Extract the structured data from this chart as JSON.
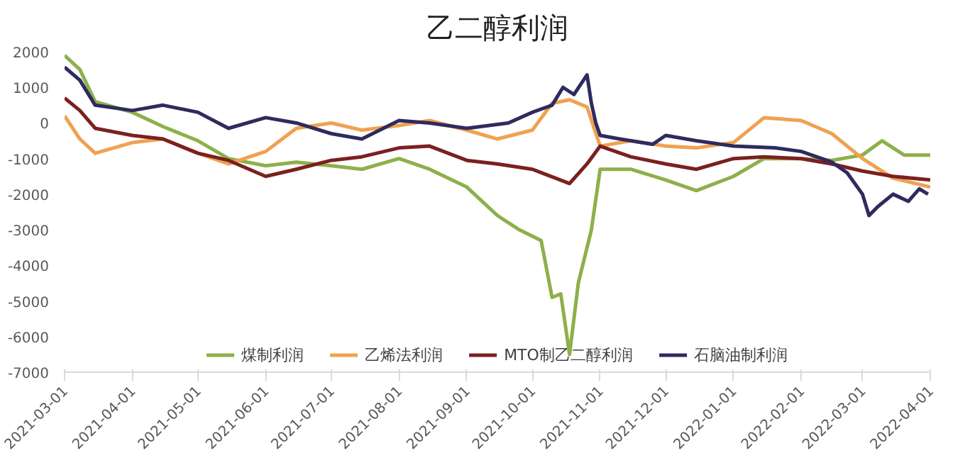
{
  "chart_data": {
    "type": "line",
    "title": "乙二醇利润",
    "xlim": [
      "2021-03-01",
      "2022-04-01"
    ],
    "xticks": [
      "2021-03-01",
      "2021-04-01",
      "2021-05-01",
      "2021-06-01",
      "2021-07-01",
      "2021-08-01",
      "2021-09-01",
      "2021-10-01",
      "2021-11-01",
      "2021-12-01",
      "2022-01-01",
      "2022-02-01",
      "2022-03-01",
      "2022-04-01"
    ],
    "ylim": [
      -7000,
      2000
    ],
    "yticks": [
      -7000,
      -6000,
      -5000,
      -4000,
      -3000,
      -2000,
      -1000,
      0,
      1000,
      2000
    ],
    "grid": false,
    "legend": "bottom",
    "series": [
      {
        "name": "煤制利润",
        "color": "#8db04a",
        "x": [
          "2021-03-01",
          "2021-03-08",
          "2021-03-15",
          "2021-04-01",
          "2021-04-15",
          "2021-05-01",
          "2021-05-15",
          "2021-06-01",
          "2021-06-15",
          "2021-07-01",
          "2021-07-15",
          "2021-08-01",
          "2021-08-15",
          "2021-09-01",
          "2021-09-15",
          "2021-09-25",
          "2021-10-05",
          "2021-10-10",
          "2021-10-14",
          "2021-10-18",
          "2021-10-22",
          "2021-10-28",
          "2021-11-01",
          "2021-11-15",
          "2021-12-01",
          "2021-12-15",
          "2022-01-01",
          "2022-01-15",
          "2022-02-01",
          "2022-02-15",
          "2022-03-01",
          "2022-03-10",
          "2022-03-20",
          "2022-04-01"
        ],
        "values": [
          1900,
          1500,
          600,
          300,
          -100,
          -500,
          -1000,
          -1200,
          -1100,
          -1200,
          -1300,
          -1000,
          -1300,
          -1800,
          -2600,
          -3000,
          -3300,
          -4900,
          -4800,
          -6500,
          -4500,
          -3000,
          -1300,
          -1300,
          -1600,
          -1900,
          -1500,
          -1000,
          -1000,
          -1050,
          -900,
          -500,
          -900,
          -900
        ]
      },
      {
        "name": "乙烯法利润",
        "color": "#f0a150",
        "x": [
          "2021-03-01",
          "2021-03-08",
          "2021-03-15",
          "2021-04-01",
          "2021-04-15",
          "2021-05-01",
          "2021-05-15",
          "2021-06-01",
          "2021-06-15",
          "2021-07-01",
          "2021-07-15",
          "2021-08-01",
          "2021-08-15",
          "2021-09-01",
          "2021-09-15",
          "2021-10-01",
          "2021-10-10",
          "2021-10-18",
          "2021-10-26",
          "2021-11-01",
          "2021-11-15",
          "2021-12-01",
          "2021-12-15",
          "2022-01-01",
          "2022-01-15",
          "2022-02-01",
          "2022-02-15",
          "2022-03-01",
          "2022-03-15",
          "2022-04-01"
        ],
        "values": [
          200,
          -450,
          -850,
          -550,
          -450,
          -850,
          -1150,
          -800,
          -150,
          0,
          -200,
          -70,
          70,
          -200,
          -450,
          -200,
          550,
          650,
          450,
          -650,
          -500,
          -650,
          -700,
          -550,
          150,
          70,
          -300,
          -1000,
          -1550,
          -1800
        ]
      },
      {
        "name": "MTO制乙二醇利润",
        "color": "#7b2020",
        "x": [
          "2021-03-01",
          "2021-03-08",
          "2021-03-15",
          "2021-04-01",
          "2021-04-15",
          "2021-05-01",
          "2021-05-15",
          "2021-06-01",
          "2021-06-15",
          "2021-07-01",
          "2021-07-15",
          "2021-08-01",
          "2021-08-15",
          "2021-09-01",
          "2021-09-15",
          "2021-10-01",
          "2021-10-18",
          "2021-10-26",
          "2021-11-01",
          "2021-11-15",
          "2021-12-01",
          "2021-12-15",
          "2022-01-01",
          "2022-01-15",
          "2022-02-01",
          "2022-02-15",
          "2022-03-01",
          "2022-03-15",
          "2022-04-01"
        ],
        "values": [
          700,
          350,
          -150,
          -350,
          -450,
          -850,
          -1050,
          -1500,
          -1300,
          -1050,
          -950,
          -700,
          -650,
          -1050,
          -1150,
          -1300,
          -1700,
          -1150,
          -650,
          -950,
          -1150,
          -1300,
          -1000,
          -950,
          -1000,
          -1150,
          -1350,
          -1500,
          -1600
        ]
      },
      {
        "name": "石脑油制利润",
        "color": "#2e2b5e",
        "x": [
          "2021-03-01",
          "2021-03-08",
          "2021-03-15",
          "2021-04-01",
          "2021-04-15",
          "2021-05-01",
          "2021-05-15",
          "2021-06-01",
          "2021-06-15",
          "2021-07-01",
          "2021-07-15",
          "2021-08-01",
          "2021-08-15",
          "2021-09-01",
          "2021-09-20",
          "2021-10-01",
          "2021-10-10",
          "2021-10-15",
          "2021-10-20",
          "2021-10-26",
          "2021-10-28",
          "2021-10-30",
          "2021-11-01",
          "2021-11-10",
          "2021-11-25",
          "2021-12-01",
          "2021-12-15",
          "2022-01-01",
          "2022-01-20",
          "2022-02-01",
          "2022-02-15",
          "2022-02-22",
          "2022-03-01",
          "2022-03-04",
          "2022-03-08",
          "2022-03-15",
          "2022-03-22",
          "2022-03-27",
          "2022-03-31"
        ],
        "values": [
          1570,
          1200,
          500,
          350,
          500,
          300,
          -150,
          150,
          0,
          -300,
          -450,
          70,
          0,
          -150,
          0,
          300,
          500,
          1000,
          800,
          1350,
          550,
          0,
          -350,
          -450,
          -600,
          -350,
          -500,
          -650,
          -700,
          -800,
          -1100,
          -1400,
          -2000,
          -2600,
          -2350,
          -2000,
          -2200,
          -1850,
          -2000
        ]
      }
    ]
  }
}
